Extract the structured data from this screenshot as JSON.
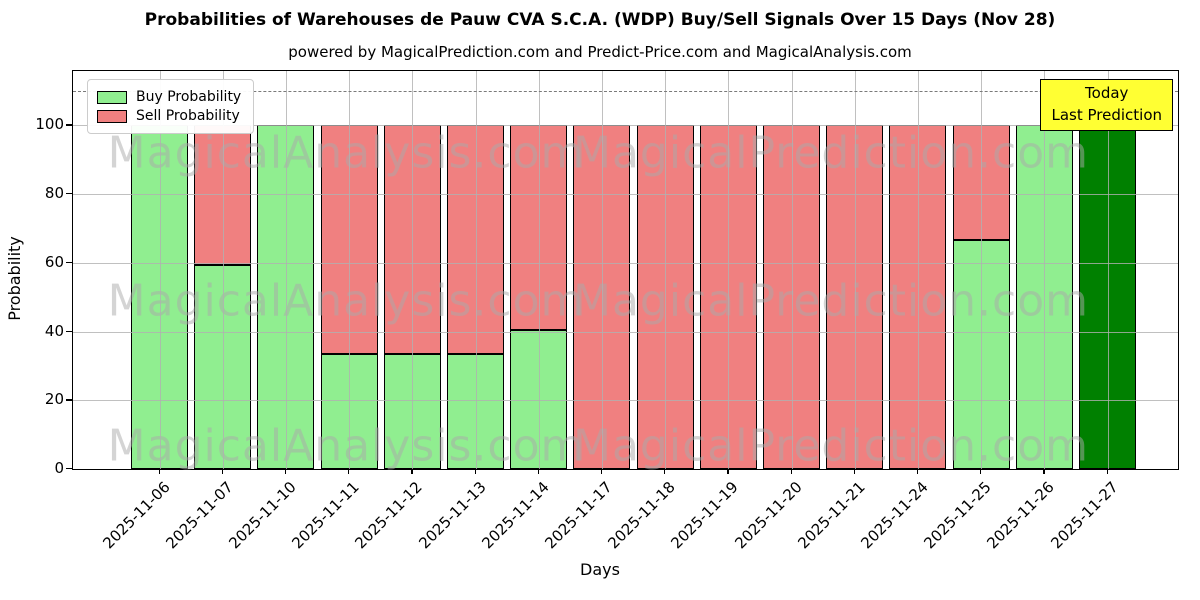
{
  "chart_data": {
    "type": "bar",
    "stacked": true,
    "title": "Probabilities of Warehouses de Pauw CVA S.C.A. (WDP) Buy/Sell Signals Over 15 Days (Nov 28)",
    "subtitle": "powered by MagicalPrediction.com and Predict-Price.com and MagicalAnalysis.com",
    "xlabel": "Days",
    "ylabel": "Probability",
    "categories": [
      "2025-11-06",
      "2025-11-07",
      "2025-11-10",
      "2025-11-11",
      "2025-11-12",
      "2025-11-13",
      "2025-11-14",
      "2025-11-17",
      "2025-11-18",
      "2025-11-19",
      "2025-11-20",
      "2025-11-21",
      "2025-11-24",
      "2025-11-25",
      "2025-11-26",
      "2025-11-27"
    ],
    "series": [
      {
        "name": "Buy Probability",
        "color": "#90ee90",
        "values": [
          100,
          59.5,
          100,
          33.33,
          33.33,
          33.33,
          40.5,
          0,
          0,
          0,
          0,
          0,
          0,
          66.67,
          100,
          100
        ]
      },
      {
        "name": "Sell Probability",
        "color": "#f08080",
        "values": [
          0,
          40.5,
          0,
          66.67,
          66.67,
          66.67,
          59.5,
          100,
          100,
          100,
          100,
          100,
          100,
          33.33,
          0,
          0
        ]
      }
    ],
    "today_bar": {
      "category": "2025-11-27",
      "index": 15,
      "color": "#008000"
    },
    "yticks": [
      0,
      20,
      40,
      60,
      80,
      100
    ],
    "ylim": [
      0,
      115.8
    ],
    "dashed_line_y": 110,
    "grid": true,
    "legend_position": "upper-left",
    "annotation": {
      "line1": "Today",
      "line2": "Last Prediction",
      "bg_color": "#ffff33"
    },
    "watermarks": {
      "left": "MagicalAnalysis.com",
      "right": "MagicalPrediction.com"
    },
    "bar_edge_color": "#000000"
  }
}
